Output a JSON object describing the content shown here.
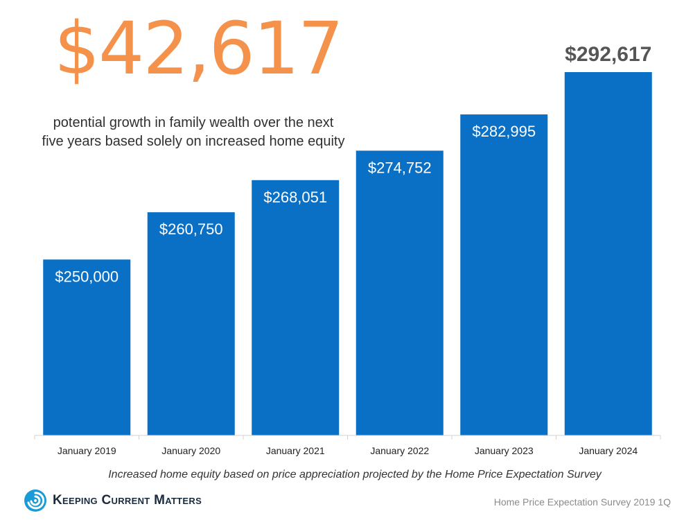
{
  "headline": {
    "value": "$42,617",
    "caption_line1": "potential growth in family wealth over the next",
    "caption_line2": "five years based solely on increased home equity"
  },
  "footer": {
    "caption": "Increased home equity based on price appreciation projected by the Home Price Expectation Survey",
    "brand": "Keeping Current Matters",
    "source": "Home Price Expectation Survey 2019 1Q"
  },
  "colors": {
    "bar": "#0A70C6",
    "headline": "#F4914A",
    "highlight_label": "#555555",
    "bar_label": "#FFFFFF"
  },
  "chart_data": {
    "type": "bar",
    "title": "",
    "xlabel": "",
    "ylabel": "",
    "categories": [
      "January 2019",
      "January 2020",
      "January 2021",
      "January 2022",
      "January 2023",
      "January 2024"
    ],
    "values": [
      250000,
      260750,
      268051,
      274752,
      282995,
      292617
    ],
    "data_labels": [
      "$250,000",
      "$260,750",
      "$268,051",
      "$274,752",
      "$282,995",
      "$292,617"
    ],
    "ylim": [
      210000,
      298000
    ],
    "grid": false,
    "legend": "none"
  }
}
